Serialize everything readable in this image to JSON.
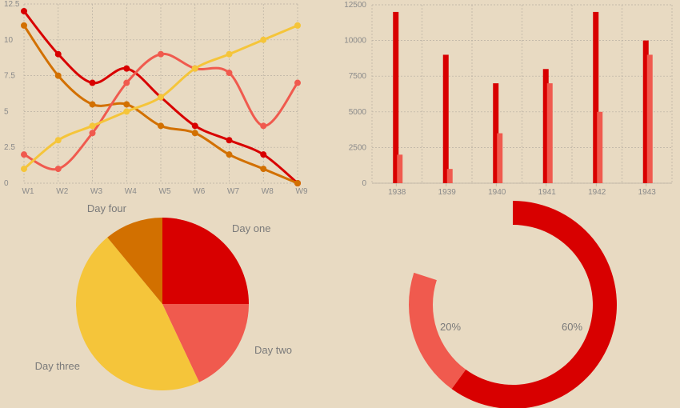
{
  "colors": {
    "background": "#e8dac2",
    "red": "#d80000",
    "salmon": "#f05a4e",
    "orange": "#d27000",
    "yellow": "#f5c53a",
    "grid": "#b8b0a2",
    "tick_text": "#8a8a8a",
    "label_text": "#7a7a7a"
  },
  "chart_data": [
    {
      "type": "line",
      "smooth": true,
      "x": [
        "W1",
        "W2",
        "W3",
        "W4",
        "W5",
        "W6",
        "W7",
        "W8",
        "W9"
      ],
      "ylim": [
        0,
        12.5
      ],
      "yticks": [
        "0",
        "2.5",
        "5",
        "7.5",
        "10",
        "12.5"
      ],
      "grid": true,
      "series": [
        {
          "color": "#d80000",
          "values": [
            12,
            9,
            7,
            8,
            6,
            4,
            3,
            2,
            0
          ]
        },
        {
          "color": "#d27000",
          "values": [
            11,
            7.5,
            5.5,
            5.5,
            4,
            3.5,
            2,
            1,
            0
          ]
        },
        {
          "color": "#f05a4e",
          "values": [
            2,
            1,
            3.5,
            7,
            9,
            8,
            7.7,
            4,
            7
          ]
        },
        {
          "color": "#f5c53a",
          "values": [
            1,
            3,
            4,
            5,
            6,
            8,
            9,
            10,
            11
          ]
        }
      ]
    },
    {
      "type": "bar",
      "categories": [
        "1938",
        "1939",
        "1940",
        "1941",
        "1942",
        "1943"
      ],
      "ylim": [
        0,
        12500
      ],
      "yticks": [
        "0",
        "2500",
        "5000",
        "7500",
        "10000",
        "12500"
      ],
      "grid": true,
      "series": [
        {
          "color": "#d80000",
          "values": [
            12000,
            9000,
            7000,
            8000,
            12000,
            10000
          ]
        },
        {
          "color": "#f05a4e",
          "values": [
            2000,
            1000,
            3500,
            7000,
            5000,
            9000
          ]
        }
      ]
    },
    {
      "type": "pie",
      "slices": [
        {
          "label": "Day one",
          "value": 25,
          "color": "#d80000"
        },
        {
          "label": "Day two",
          "value": 18,
          "color": "#f05a4e"
        },
        {
          "label": "Day three",
          "value": 46,
          "color": "#f5c53a"
        },
        {
          "label": "Day four",
          "value": 11,
          "color": "#d27000"
        }
      ]
    },
    {
      "type": "pie",
      "donut": true,
      "slices": [
        {
          "label": "60%",
          "value": 60,
          "color": "#d80000"
        },
        {
          "label": "20%",
          "value": 20,
          "color": "#f05a4e"
        }
      ],
      "remainder": 20
    }
  ]
}
